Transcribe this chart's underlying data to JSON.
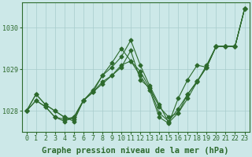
{
  "title": "Graphe pression niveau de la mer (hPa)",
  "xlabel_hours": [
    0,
    1,
    2,
    3,
    4,
    5,
    6,
    7,
    8,
    9,
    10,
    11,
    12,
    13,
    14,
    15,
    16,
    17,
    18,
    19,
    20,
    21,
    22,
    23
  ],
  "series": [
    [
      1028.0,
      1028.4,
      1028.15,
      1028.0,
      1027.85,
      1027.8,
      1028.25,
      1028.45,
      1028.7,
      1028.85,
      1029.05,
      1029.45,
      1028.75,
      1028.55,
      1028.1,
      1027.85,
      1027.95,
      1028.3,
      1028.7,
      1029.05,
      1029.55,
      1029.55,
      1029.55,
      1030.45
    ],
    [
      1028.0,
      1028.25,
      1028.1,
      1027.85,
      1027.75,
      1027.85,
      1028.25,
      1028.5,
      1028.85,
      1029.15,
      1029.5,
      1029.2,
      1028.85,
      1028.5,
      1027.85,
      1027.7,
      1028.3,
      1028.75,
      1029.1,
      1029.05,
      1029.55,
      1029.55,
      1029.55,
      1030.45
    ],
    [
      1028.0,
      1028.4,
      1028.15,
      1028.0,
      1027.85,
      1027.75,
      1028.25,
      1028.45,
      1028.85,
      1029.05,
      1029.3,
      1029.7,
      1029.1,
      1028.6,
      1028.15,
      1027.72,
      1027.95,
      1028.4,
      1028.7,
      1029.1,
      1029.55,
      1029.55,
      1029.55,
      1030.45
    ],
    [
      1028.0,
      1028.25,
      1028.1,
      1027.85,
      1027.8,
      1027.85,
      1028.25,
      1028.45,
      1028.65,
      1028.85,
      1029.1,
      1029.2,
      1028.95,
      1028.55,
      1027.95,
      1027.75,
      1028.05,
      1028.4,
      1028.72,
      1029.05,
      1029.55,
      1029.55,
      1029.55,
      1030.45
    ]
  ],
  "line_color": "#2d6a2d",
  "marker": "D",
  "marker_size": 2.5,
  "bg_color": "#cce8e8",
  "grid_color": "#a8cccc",
  "ylim": [
    1027.5,
    1030.6
  ],
  "yticks": [
    1028,
    1029,
    1030
  ],
  "title_fontsize": 7.5,
  "tick_fontsize": 6.0,
  "linewidth": 0.8
}
